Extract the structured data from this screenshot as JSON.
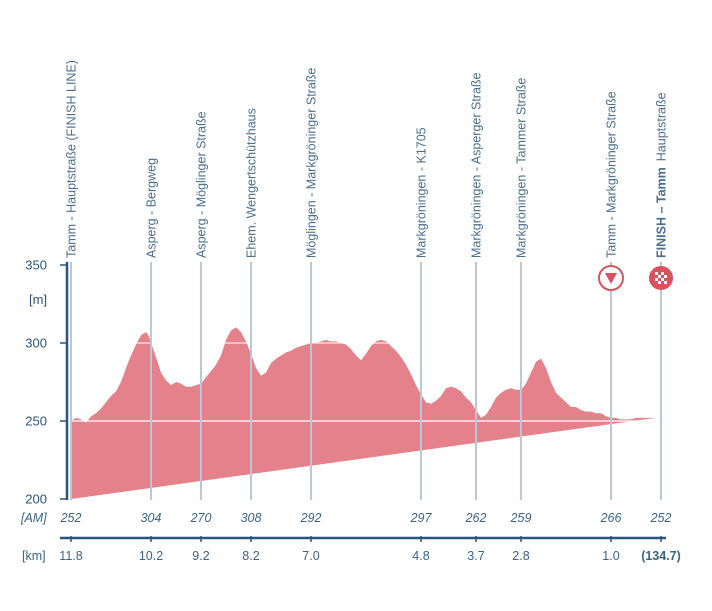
{
  "chart_data": {
    "type": "area",
    "ylabel": "[m]",
    "ylim": [
      200,
      350
    ],
    "yticks": [
      200,
      250,
      300,
      350
    ],
    "altitude_row_label": "[AM]",
    "km_row_label": "[km]",
    "waypoints": [
      {
        "name": "Tamm - Hauptstraße (FINISH LINE)",
        "altitude": "252",
        "km": "11.8",
        "kmx": 0.0
      },
      {
        "name": "Asperg - Bergweg",
        "altitude": "304",
        "km": "10.2",
        "kmx": 1.6
      },
      {
        "name": "Asperg - Möglinger Straße",
        "altitude": "270",
        "km": "9.2",
        "kmx": 2.6
      },
      {
        "name": "Ehem. Wengertschützhaus",
        "altitude": "308",
        "km": "8.2",
        "kmx": 3.6
      },
      {
        "name": "Möglingen - Markgröninger Straße",
        "altitude": "292",
        "km": "7.0",
        "kmx": 4.8
      },
      {
        "name": "Markgröningen - K1705",
        "altitude": "297",
        "km": "4.8",
        "kmx": 7.0
      },
      {
        "name": "Markgröningen - Asperger Straße",
        "altitude": "262",
        "km": "3.7",
        "kmx": 8.1
      },
      {
        "name": "Markgröningen - Tammer Straße",
        "altitude": "259",
        "km": "2.8",
        "kmx": 9.0
      },
      {
        "name": "Tamm - Markgröninger Straße",
        "altitude": "266",
        "km": "1.0",
        "kmx": 10.8
      },
      {
        "name": "FINISH – Tamm  Hauptstraße",
        "name_bold": "FINISH – Tamm",
        "name_rest": "Hauptstraße",
        "altitude": "252",
        "km": "(134.7)",
        "kmx": 11.8
      }
    ],
    "profile": {
      "x": [
        0.0,
        0.1,
        0.2,
        0.3,
        0.4,
        0.5,
        0.6,
        0.7,
        0.8,
        0.9,
        1.0,
        1.1,
        1.2,
        1.3,
        1.4,
        1.5,
        1.55,
        1.6,
        1.7,
        1.8,
        1.9,
        2.0,
        2.1,
        2.2,
        2.3,
        2.4,
        2.5,
        2.6,
        2.7,
        2.8,
        2.9,
        3.0,
        3.1,
        3.2,
        3.3,
        3.4,
        3.5,
        3.6,
        3.7,
        3.8,
        3.9,
        4.0,
        4.1,
        4.2,
        4.3,
        4.4,
        4.5,
        4.6,
        4.7,
        4.8,
        4.9,
        5.0,
        5.1,
        5.2,
        5.3,
        5.4,
        5.5,
        5.6,
        5.7,
        5.8,
        5.9,
        6.0,
        6.1,
        6.2,
        6.3,
        6.4,
        6.5,
        6.6,
        6.7,
        6.8,
        6.9,
        7.0,
        7.1,
        7.2,
        7.3,
        7.4,
        7.5,
        7.6,
        7.7,
        7.8,
        7.9,
        8.0,
        8.1,
        8.2,
        8.3,
        8.4,
        8.5,
        8.6,
        8.7,
        8.8,
        8.9,
        9.0,
        9.1,
        9.2,
        9.3,
        9.4,
        9.5,
        9.6,
        9.7,
        9.8,
        9.9,
        10.0,
        10.1,
        10.2,
        10.3,
        10.4,
        10.5,
        10.6,
        10.7,
        10.8,
        10.9,
        11.0,
        11.1,
        11.2,
        11.3,
        11.4,
        11.5,
        11.6,
        11.7,
        11.8
      ],
      "altitude": [
        250,
        252,
        251,
        249,
        253,
        255,
        258,
        262,
        266,
        269,
        275,
        284,
        292,
        299,
        305,
        307,
        305,
        300,
        291,
        281,
        276,
        273,
        275,
        274,
        272,
        272,
        273,
        274,
        278,
        282,
        286,
        292,
        302,
        308,
        310,
        307,
        301,
        293,
        284,
        279,
        281,
        287,
        290,
        292,
        294,
        295,
        297,
        298,
        299,
        300,
        300,
        301,
        302,
        301,
        301,
        300,
        299,
        296,
        292,
        289,
        293,
        298,
        301,
        302,
        301,
        298,
        295,
        291,
        286,
        280,
        273,
        267,
        262,
        261,
        263,
        266,
        271,
        272,
        271,
        269,
        265,
        262,
        257,
        252,
        254,
        259,
        265,
        268,
        270,
        271,
        270,
        270,
        274,
        281,
        288,
        290,
        284,
        275,
        268,
        265,
        262,
        259,
        259,
        257,
        256,
        256,
        255,
        255,
        253,
        252,
        252,
        251,
        251,
        251,
        252,
        252,
        252,
        252,
        252
      ]
    },
    "colors": {
      "profile_fill": "#e5818a",
      "axis": "#2a557f",
      "leader": "#b8c8d8",
      "marker": "#d9535f",
      "reference": "#ffffff"
    },
    "markers": {
      "flamme_rouge_km": "1.0",
      "finish_flag_km": "(134.7)",
      "flamme_rouge_icon": "red-triangle-circle-icon",
      "finish_icon": "checkered-flag-circle-icon"
    }
  }
}
